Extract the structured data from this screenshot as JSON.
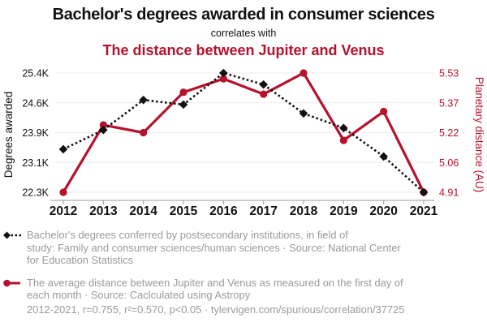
{
  "header": {
    "title": "Bachelor's degrees awarded in consumer sciences",
    "connector": "correlates with",
    "subtitle": "The distance between Jupiter and Venus"
  },
  "colors": {
    "series1": "#111111",
    "series2": "#b6122d",
    "grid": "#ececec",
    "axis": "#999999",
    "legend_text": "#9a9a9a"
  },
  "chart_data": {
    "type": "line",
    "x": [
      2012,
      2013,
      2014,
      2015,
      2016,
      2017,
      2018,
      2019,
      2020,
      2021
    ],
    "grid": true,
    "legend_position": "below",
    "series": [
      {
        "name": "Bachelor's degrees conferred by postsecondary institutions, in field of study: Family and consumer sciences/human sciences",
        "axis": "left",
        "color": "#111111",
        "style": "dashed",
        "marker": "diamond",
        "values": [
          23420,
          23920,
          24700,
          24580,
          25400,
          25100,
          24350,
          23970,
          23230,
          22300
        ]
      },
      {
        "name": "The average distance between Jupiter and Venus (AU)",
        "axis": "right",
        "color": "#b6122d",
        "style": "solid",
        "marker": "circle",
        "values": [
          4.91,
          5.26,
          5.22,
          5.43,
          5.5,
          5.42,
          5.53,
          5.18,
          5.33,
          4.91
        ]
      }
    ],
    "left_axis": {
      "label": "Degrees awarded",
      "ticks": [
        "22.3K",
        "23.1K",
        "23.9K",
        "24.6K",
        "25.4K"
      ],
      "tick_values": [
        22300,
        23075,
        23850,
        24625,
        25400
      ],
      "min": 22300,
      "max": 25400
    },
    "right_axis": {
      "label": "Planetary distance (AU)",
      "ticks": [
        "4.91",
        "5.06",
        "5.22",
        "5.37",
        "5.53"
      ],
      "tick_values": [
        4.91,
        5.065,
        5.22,
        5.375,
        5.53
      ],
      "min": 4.91,
      "max": 5.53
    }
  },
  "legend": {
    "entries": [
      {
        "marker": "black-diamond-dashed",
        "text": "Bachelor's degrees conferred by postsecondary institutions, in field of\nstudy: Family and consumer sciences/human sciences · Source: National Center\nfor Education Statistics"
      },
      {
        "marker": "red-circle-solid",
        "text": "The average distance between Jupiter and Venus as measured on the first day of\neach month · Source: Caclculated using Astropy"
      }
    ],
    "footer": "2012-2021, r=0.755, r²=0.570, p<0.05 · tylervigen.com/spurious/correlation/37725"
  }
}
